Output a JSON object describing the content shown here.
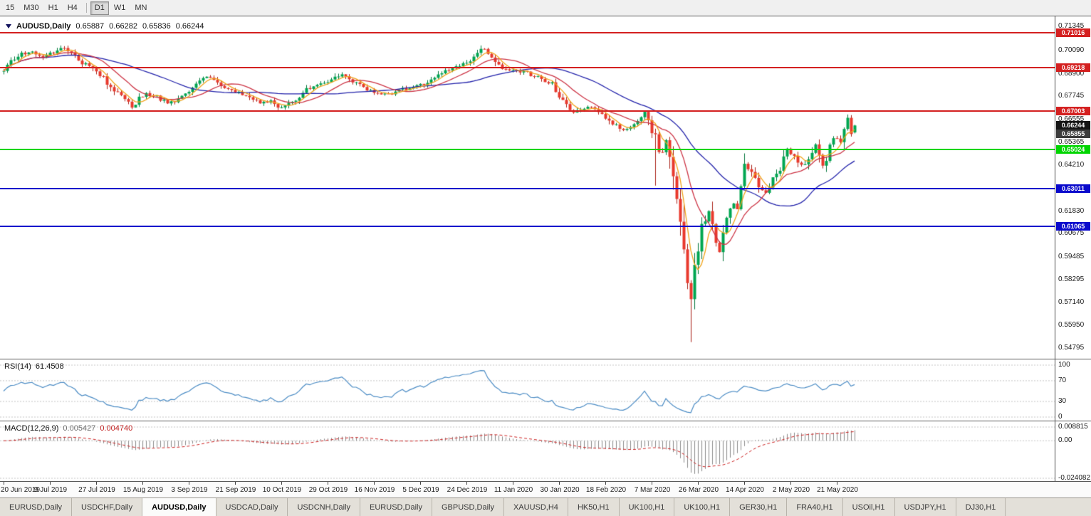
{
  "toolbar": {
    "buttons": [
      {
        "label": "15"
      },
      {
        "label": "M30"
      },
      {
        "label": "H1"
      },
      {
        "label": "H4"
      },
      {
        "separator": true
      },
      {
        "label": "D1",
        "active": true
      },
      {
        "label": "W1"
      },
      {
        "label": "MN"
      }
    ]
  },
  "chart_data": {
    "type": "candlestick",
    "symbol": "AUDUSD,Daily",
    "ohlc_display": {
      "open": "0.65887",
      "high": "0.66282",
      "low": "0.65836",
      "close": "0.66244"
    },
    "price_axis_ticks": [
      "0.71345",
      "0.70090",
      "0.68900",
      "0.67745",
      "0.66555",
      "0.65365",
      "0.64210",
      "0.63020",
      "0.61830",
      "0.60675",
      "0.59485",
      "0.58295",
      "0.57140",
      "0.55950",
      "0.54795"
    ],
    "price_range": {
      "min": 0.54795,
      "max": 0.71345
    },
    "candle_count": 240,
    "seed": 20200529,
    "close_keyframes": [
      [
        0,
        0.6915
      ],
      [
        2,
        0.696
      ],
      [
        5,
        0.699
      ],
      [
        8,
        0.7
      ],
      [
        11,
        0.6975
      ],
      [
        14,
        0.7005
      ],
      [
        17,
        0.7022
      ],
      [
        19,
        0.6995
      ],
      [
        22,
        0.695
      ],
      [
        25,
        0.6915
      ],
      [
        28,
        0.6872
      ],
      [
        31,
        0.68
      ],
      [
        34,
        0.6758
      ],
      [
        36,
        0.6722
      ],
      [
        38,
        0.6758
      ],
      [
        40,
        0.6782
      ],
      [
        43,
        0.6768
      ],
      [
        46,
        0.6742
      ],
      [
        49,
        0.6762
      ],
      [
        52,
        0.68
      ],
      [
        55,
        0.6858
      ],
      [
        57,
        0.6872
      ],
      [
        60,
        0.685
      ],
      [
        63,
        0.681
      ],
      [
        66,
        0.6788
      ],
      [
        69,
        0.6766
      ],
      [
        72,
        0.6742
      ],
      [
        75,
        0.6752
      ],
      [
        78,
        0.6718
      ],
      [
        80,
        0.674
      ],
      [
        83,
        0.6768
      ],
      [
        86,
        0.6822
      ],
      [
        89,
        0.684
      ],
      [
        92,
        0.6852
      ],
      [
        95,
        0.6888
      ],
      [
        97,
        0.6868
      ],
      [
        100,
        0.683
      ],
      [
        103,
        0.68
      ],
      [
        106,
        0.6788
      ],
      [
        109,
        0.6792
      ],
      [
        112,
        0.6808
      ],
      [
        115,
        0.6818
      ],
      [
        118,
        0.6838
      ],
      [
        121,
        0.6872
      ],
      [
        124,
        0.6905
      ],
      [
        127,
        0.6928
      ],
      [
        130,
        0.6948
      ],
      [
        133,
        0.6988
      ],
      [
        135,
        0.7018
      ],
      [
        137,
        0.6985
      ],
      [
        139,
        0.6938
      ],
      [
        141,
        0.6912
      ],
      [
        143,
        0.6905
      ],
      [
        146,
        0.6898
      ],
      [
        149,
        0.6878
      ],
      [
        152,
        0.6852
      ],
      [
        154,
        0.6838
      ],
      [
        156,
        0.6772
      ],
      [
        158,
        0.672
      ],
      [
        160,
        0.6692
      ],
      [
        162,
        0.6706
      ],
      [
        164,
        0.6718
      ],
      [
        166,
        0.67
      ],
      [
        168,
        0.6682
      ],
      [
        170,
        0.6652
      ],
      [
        172,
        0.6618
      ],
      [
        174,
        0.66
      ],
      [
        176,
        0.6622
      ],
      [
        178,
        0.6658
      ],
      [
        180,
        0.6685
      ],
      [
        181,
        0.664
      ],
      [
        182,
        0.6585
      ],
      [
        183,
        0.658
      ],
      [
        184,
        0.65
      ],
      [
        185,
        0.6488
      ],
      [
        186,
        0.6548
      ],
      [
        187,
        0.651
      ],
      [
        188,
        0.634
      ],
      [
        189,
        0.621
      ],
      [
        190,
        0.6125
      ],
      [
        191,
        0.5995
      ],
      [
        192,
        0.582
      ],
      [
        193,
        0.5745
      ],
      [
        194,
        0.5908
      ],
      [
        195,
        0.5995
      ],
      [
        196,
        0.6078
      ],
      [
        197,
        0.6135
      ],
      [
        198,
        0.6172
      ],
      [
        199,
        0.6108
      ],
      [
        200,
        0.6022
      ],
      [
        201,
        0.5985
      ],
      [
        202,
        0.6075
      ],
      [
        203,
        0.6158
      ],
      [
        204,
        0.6182
      ],
      [
        205,
        0.6228
      ],
      [
        206,
        0.6188
      ],
      [
        207,
        0.6265
      ],
      [
        208,
        0.643
      ],
      [
        210,
        0.6388
      ],
      [
        212,
        0.6302
      ],
      [
        214,
        0.6272
      ],
      [
        216,
        0.6355
      ],
      [
        218,
        0.6415
      ],
      [
        220,
        0.6505
      ],
      [
        222,
        0.6465
      ],
      [
        224,
        0.642
      ],
      [
        226,
        0.6452
      ],
      [
        228,
        0.6528
      ],
      [
        229,
        0.6465
      ],
      [
        230,
        0.6418
      ],
      [
        231,
        0.6452
      ],
      [
        232,
        0.6525
      ],
      [
        233,
        0.6562
      ],
      [
        234,
        0.6561
      ],
      [
        235,
        0.6548
      ],
      [
        236,
        0.6608
      ],
      [
        237,
        0.6658
      ],
      [
        238,
        0.6589
      ],
      [
        239,
        0.66244
      ]
    ],
    "wick_overrides": [
      {
        "i": 183,
        "low": 0.6315
      },
      {
        "i": 193,
        "low": 0.551
      },
      {
        "i": 180,
        "high": 0.669
      },
      {
        "i": 237,
        "high": 0.6681
      }
    ],
    "last_candle": {
      "o": 0.65887,
      "h": 0.66282,
      "l": 0.65836,
      "c": 0.66244
    },
    "levels": [
      {
        "label": "0.71016",
        "value": 0.71016,
        "color": "#d42020",
        "type": "resistance"
      },
      {
        "label": "0.69218",
        "value": 0.69218,
        "color": "#d42020",
        "type": "resistance"
      },
      {
        "label": "0.67003",
        "value": 0.67003,
        "color": "#d42020",
        "type": "resistance"
      },
      {
        "label": "0.65024",
        "value": 0.65024,
        "color": "#00d500",
        "type": "support"
      },
      {
        "label": "0.63011",
        "value": 0.63011,
        "color": "#0a0acc",
        "type": "support"
      },
      {
        "label": "0.61065",
        "value": 0.61065,
        "color": "#0a0acc",
        "type": "support"
      }
    ],
    "price_markers": [
      {
        "label": "0.66244",
        "value": 0.66244,
        "bg": "#141414"
      },
      {
        "label": "0.65855",
        "value": 0.65855,
        "bg": "#3c3c3c"
      }
    ],
    "moving_averages": [
      {
        "period": 34,
        "color": "#2222aa",
        "name": "ma-slow"
      },
      {
        "period": 13,
        "color": "#cc3344",
        "name": "ma-mid"
      },
      {
        "period": 5,
        "color": "#f0a31a",
        "name": "ma-fast"
      }
    ],
    "colors": {
      "up": "#00a651",
      "up_dark": "#00753a",
      "down": "#e8392d",
      "down_dark": "#a81e15",
      "background": "#ffffff"
    }
  },
  "rsi_panel": {
    "name": "RSI(14)",
    "value": "61.4508",
    "period": 14,
    "color": "#4a8bc4",
    "axis": [
      {
        "label": "100",
        "value": 100
      },
      {
        "label": "70",
        "value": 70
      },
      {
        "label": "30",
        "value": 30
      },
      {
        "label": "0",
        "value": 0
      }
    ]
  },
  "macd_panel": {
    "name": "MACD(12,26,9)",
    "value1": "0.005427",
    "value2": "0.004740",
    "fast": 12,
    "slow": 26,
    "signal": 9,
    "histogram_color": "#8a8a8a",
    "signal_color": "#cc2222",
    "axis": [
      {
        "label": "0.008815",
        "value": 0.008815
      },
      {
        "label": "0.00",
        "value": 0
      },
      {
        "label": "-0.024082",
        "value": -0.024082
      }
    ]
  },
  "date_axis": {
    "candles_per_label": 13,
    "labels": [
      "20 Jun 2019",
      "9 Jul 2019",
      "27 Jul 2019",
      "15 Aug 2019",
      "3 Sep 2019",
      "21 Sep 2019",
      "10 Oct 2019",
      "29 Oct 2019",
      "16 Nov 2019",
      "5 Dec 2019",
      "24 Dec 2019",
      "11 Jan 2020",
      "30 Jan 2020",
      "18 Feb 2020",
      "7 Mar 2020",
      "26 Mar 2020",
      "14 Apr 2020",
      "2 May 2020",
      "21 May 2020"
    ]
  },
  "tabs": {
    "items": [
      {
        "label": "EURUSD,Daily",
        "active": false
      },
      {
        "label": "USDCHF,Daily",
        "active": false
      },
      {
        "label": "AUDUSD,Daily",
        "active": true
      },
      {
        "label": "USDCAD,Daily",
        "active": false
      },
      {
        "label": "USDCNH,Daily",
        "active": false
      },
      {
        "label": "EURUSD,Daily",
        "active": false
      },
      {
        "label": "GBPUSD,Daily",
        "active": false
      },
      {
        "label": "XAUUSD,H4",
        "active": false
      },
      {
        "label": "HK50,H1",
        "active": false
      },
      {
        "label": "UK100,H1",
        "active": false
      },
      {
        "label": "UK100,H1",
        "active": false
      },
      {
        "label": "GER30,H1",
        "active": false
      },
      {
        "label": "FRA40,H1",
        "active": false
      },
      {
        "label": "USOil,H1",
        "active": false
      },
      {
        "label": "USDJPY,H1",
        "active": false
      },
      {
        "label": "DJ30,H1",
        "active": false
      }
    ]
  }
}
